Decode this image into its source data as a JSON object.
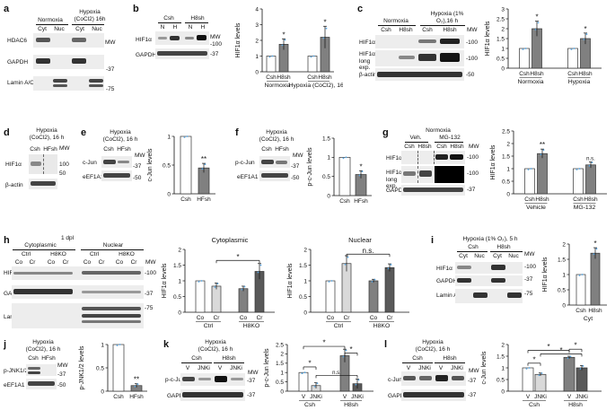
{
  "panels": {
    "a": {
      "label": "a",
      "conditions": [
        "Normoxia",
        "Hypoxia (CoCl2) 16h"
      ],
      "lanes": [
        "Cyt",
        "Nuc",
        "Cyt",
        "Nuc"
      ],
      "rows": [
        "HDAC6",
        "GAPDH",
        "Lamin A/C"
      ],
      "mw_title": "MW",
      "mw": [
        "-37",
        "-75"
      ]
    },
    "b": {
      "label": "b",
      "groups": [
        "Csh",
        "H8sh"
      ],
      "lanes": [
        "N",
        "H",
        "N",
        "H"
      ],
      "rows": [
        "HIF1α",
        "GAPDH"
      ],
      "mw_title": "MW",
      "mw": [
        "-100",
        "-37"
      ]
    },
    "c": {
      "label": "c",
      "title": "Hypoxia (1% O₂),16 h",
      "normoxia": "Normoxia",
      "lanes": [
        "Csh",
        "H8sh",
        "Csh",
        "H8sh"
      ],
      "rows": [
        "HIF1α",
        "HIF1α long exp.",
        "β-actin"
      ],
      "mw_title": "MW",
      "mw": [
        "-100",
        "-100",
        "-50"
      ]
    },
    "d": {
      "label": "d",
      "title": "Hypoxia (CoCl2), 16 h",
      "lanes": [
        "Csh",
        "HFsh"
      ],
      "rows": [
        "HIF1α",
        "β-actin"
      ],
      "mw_title": "MW",
      "mw": [
        "100",
        "50"
      ]
    },
    "e": {
      "label": "e",
      "title": "Hypoxia (CoCl2), 16 h",
      "lanes": [
        "Csh",
        "HFsh"
      ],
      "rows": [
        "c-Jun",
        "eEF1A1"
      ],
      "mw_title": "MW",
      "mw": [
        "-37",
        "-50"
      ]
    },
    "f": {
      "label": "f",
      "title": "Hypoxia (CoCl2), 16 h",
      "lanes": [
        "Csh",
        "HFsh"
      ],
      "rows": [
        "p-c-Jun",
        "eEF1A1"
      ],
      "mw_title": "MW",
      "mw": [
        "-37",
        "-50"
      ]
    },
    "g": {
      "label": "g",
      "title": "Normoxia",
      "treat": [
        "Veh.",
        "MG-132"
      ],
      "lanes": [
        "Csh",
        "H8sh",
        "Csh",
        "H8sh"
      ],
      "rows": [
        "HIF1α",
        "HIF1α long exp.",
        "GAPDH"
      ],
      "mw_title": "MW",
      "mw": [
        "-100",
        "-100",
        "-37"
      ]
    },
    "h": {
      "label": "h",
      "title": "1 dpl",
      "fractions": [
        "Cytoplasmic",
        "Nuclear"
      ],
      "geno": [
        "Ctrl",
        "H8KO",
        "Ctrl",
        "H8KO"
      ],
      "lanes": [
        "Co",
        "Cr",
        "Co",
        "Cr",
        "Co",
        "Cr",
        "Co",
        "Cr"
      ],
      "rows": [
        "HIF1α",
        "GAPDH",
        "Lamin A/C"
      ],
      "mw_title": "MW",
      "mw": [
        "-100",
        "-37",
        "-75"
      ]
    },
    "i": {
      "label": "i",
      "title": "Hypoxia (1% O₂), 5 h",
      "groups": [
        "Csh",
        "H8sh"
      ],
      "lanes": [
        "Cyt",
        "Nuc",
        "Cyt",
        "Nuc"
      ],
      "rows": [
        "HIF1α",
        "GAPDH",
        "Lamin A/C"
      ],
      "mw_title": "MW",
      "mw": [
        "-100",
        "-37",
        "-75"
      ]
    },
    "j": {
      "label": "j",
      "title": "Hypoxia (CoCl2), 16 h",
      "lanes": [
        "Csh",
        "HFsh"
      ],
      "rows": [
        "p-JNK1/2",
        "eEF1A1"
      ],
      "mw_title": "MW",
      "mw": [
        "-37",
        "-50"
      ]
    },
    "k": {
      "label": "k",
      "title": "Hypoxia (CoCl2), 16 h",
      "groups": [
        "Csh",
        "H8sh"
      ],
      "lanes": [
        "V",
        "JNKi",
        "V",
        "JNKi"
      ],
      "rows": [
        "p-c-Jun",
        "GAPDH"
      ],
      "mw_title": "MW",
      "mw": [
        "-37",
        "-37"
      ]
    },
    "l": {
      "label": "l",
      "title": "Hypoxia (CoCl2), 16 h",
      "groups": [
        "Csh",
        "H8sh"
      ],
      "lanes": [
        "V",
        "JNKi",
        "V",
        "JNKi"
      ],
      "rows": [
        "c-Jun",
        "GAPDH"
      ],
      "mw_title": "MW",
      "mw": [
        "-37",
        "-37"
      ]
    }
  },
  "chart_data": [
    {
      "id": "b",
      "type": "bar",
      "ylabel": "HIF1α levels",
      "ylim": [
        0,
        4
      ],
      "yticks": [
        "0",
        "1",
        "2",
        "3",
        "4"
      ],
      "categories": [
        "Csh",
        "H8sh",
        "Csh",
        "H8sh"
      ],
      "groups": [
        "Normoxia",
        "Hypoxia (CoCl2), 16 h"
      ],
      "values": [
        1.0,
        1.75,
        1.0,
        2.2
      ],
      "errors": [
        0,
        0.35,
        0,
        0.7
      ],
      "annotations": [
        "",
        "*",
        "",
        "*"
      ],
      "fills": [
        "#ffffff",
        "#808080",
        "#ffffff",
        "#808080"
      ]
    },
    {
      "id": "c",
      "type": "bar",
      "ylabel": "HIF1α levels",
      "ylim": [
        0,
        3
      ],
      "yticks": [
        "0",
        "0.5",
        "1",
        "1.5",
        "2",
        "2.5",
        "3"
      ],
      "categories": [
        "Csh",
        "H8sh",
        "Csh",
        "H8sh"
      ],
      "groups": [
        "Normoxia",
        "Hypoxia"
      ],
      "values": [
        1.0,
        2.0,
        1.0,
        1.5
      ],
      "errors": [
        0,
        0.38,
        0,
        0.28
      ],
      "annotations": [
        "",
        "*",
        "",
        "*"
      ],
      "fills": [
        "#ffffff",
        "#808080",
        "#ffffff",
        "#808080"
      ]
    },
    {
      "id": "e",
      "type": "bar",
      "ylabel": "c-Jun levels",
      "ylim": [
        0,
        1
      ],
      "yticks": [
        "0",
        "0.5",
        "1"
      ],
      "categories": [
        "Csh",
        "HFsh"
      ],
      "values": [
        1.0,
        0.45
      ],
      "errors": [
        0,
        0.08
      ],
      "annotations": [
        "",
        "**"
      ],
      "fills": [
        "#ffffff",
        "#808080"
      ]
    },
    {
      "id": "f",
      "type": "bar",
      "ylabel": "p-c-Jun levels",
      "ylim": [
        0,
        1.5
      ],
      "yticks": [
        "0",
        "0.5",
        "1",
        "1.5"
      ],
      "categories": [
        "Csh",
        "HFsh"
      ],
      "values": [
        1.0,
        0.55
      ],
      "errors": [
        0,
        0.1
      ],
      "annotations": [
        "",
        "*"
      ],
      "fills": [
        "#ffffff",
        "#808080"
      ]
    },
    {
      "id": "g",
      "type": "bar",
      "ylabel": "HIF1α levels",
      "ylim": [
        0,
        2.5
      ],
      "yticks": [
        "0",
        "0.5",
        "1",
        "1.5",
        "2",
        "2.5"
      ],
      "categories": [
        "Csh",
        "H8sh",
        "Csh",
        "H8sh"
      ],
      "groups": [
        "Vehicle",
        "MG-132"
      ],
      "values": [
        1.0,
        1.6,
        1.0,
        1.15
      ],
      "errors": [
        0,
        0.18,
        0,
        0.12
      ],
      "annotations": [
        "",
        "**",
        "",
        "n.s."
      ],
      "fills": [
        "#ffffff",
        "#808080",
        "#ffffff",
        "#808080"
      ]
    },
    {
      "id": "h-cyt",
      "type": "bar",
      "title": "Cytoplasmic",
      "ylabel": "HIF1α levels",
      "ylim": [
        0,
        2
      ],
      "yticks": [
        "0",
        "0.5",
        "1",
        "1.5",
        "2"
      ],
      "categories": [
        "Co",
        "Cr",
        "Co",
        "Cr"
      ],
      "groups": [
        "Ctrl",
        "H8KO"
      ],
      "values": [
        1.0,
        0.83,
        0.75,
        1.3
      ],
      "errors": [
        0,
        0.1,
        0.08,
        0.25
      ],
      "annotations": [
        "*"
      ],
      "fills": [
        "#ffffff",
        "#d9d9d9",
        "#808080",
        "#595959"
      ]
    },
    {
      "id": "h-nuc",
      "type": "bar",
      "title": "Nuclear",
      "ylabel": "HIF1α levels",
      "ylim": [
        0,
        2
      ],
      "yticks": [
        "0",
        "0.5",
        "1",
        "1.5",
        "2"
      ],
      "categories": [
        "Co",
        "Cr",
        "Co",
        "Cr"
      ],
      "groups": [
        "Ctrl",
        "H8KO"
      ],
      "values": [
        1.0,
        1.55,
        1.0,
        1.42
      ],
      "errors": [
        0,
        0.25,
        0.05,
        0.12
      ],
      "annotations": [
        "n.s."
      ],
      "fills": [
        "#ffffff",
        "#d9d9d9",
        "#808080",
        "#595959"
      ]
    },
    {
      "id": "i",
      "type": "bar",
      "ylabel": "HIF1α levels",
      "ylim": [
        0,
        2
      ],
      "yticks": [
        "0",
        "0.5",
        "1",
        "1.5",
        "2"
      ],
      "categories": [
        "Csh",
        "H8sh"
      ],
      "groups": [
        "Cyt"
      ],
      "values": [
        1.0,
        1.7
      ],
      "errors": [
        0,
        0.18
      ],
      "annotations": [
        "",
        "*"
      ],
      "fills": [
        "#ffffff",
        "#808080"
      ]
    },
    {
      "id": "j",
      "type": "bar",
      "ylabel": "p-JNK1/2 levels",
      "ylim": [
        0,
        1
      ],
      "yticks": [
        "0",
        "0.5",
        "1"
      ],
      "categories": [
        "Csh",
        "HFsh"
      ],
      "values": [
        1.0,
        0.12
      ],
      "errors": [
        0,
        0.04
      ],
      "annotations": [
        "",
        "**"
      ],
      "fills": [
        "#ffffff",
        "#808080"
      ]
    },
    {
      "id": "k",
      "type": "bar",
      "ylabel": "p-c-Jun levels",
      "ylim": [
        0,
        2.5
      ],
      "yticks": [
        "0",
        "0.5",
        "1",
        "1.5",
        "2",
        "2.5"
      ],
      "categories": [
        "V",
        "JNKi",
        "V",
        "JNKi"
      ],
      "groups": [
        "Csh",
        "H8sh"
      ],
      "values": [
        1.0,
        0.3,
        1.9,
        0.4
      ],
      "errors": [
        0,
        0.15,
        0.35,
        0.25
      ],
      "annotations": [
        "*",
        "*",
        "*",
        "n.s."
      ],
      "fills": [
        "#ffffff",
        "#d9d9d9",
        "#808080",
        "#595959"
      ]
    },
    {
      "id": "l",
      "type": "bar",
      "ylabel": "c-Jun levels",
      "ylim": [
        0,
        2
      ],
      "yticks": [
        "0",
        "0.5",
        "1",
        "1.5",
        "2"
      ],
      "categories": [
        "V",
        "JNKi",
        "V",
        "JNKi"
      ],
      "groups": [
        "Csh",
        "H8sh"
      ],
      "values": [
        1.0,
        0.72,
        1.45,
        1.0
      ],
      "errors": [
        0,
        0.06,
        0.05,
        0.1
      ],
      "annotations": [
        "*",
        "*",
        "*",
        "*"
      ],
      "fills": [
        "#ffffff",
        "#d9d9d9",
        "#808080",
        "#595959"
      ]
    }
  ]
}
